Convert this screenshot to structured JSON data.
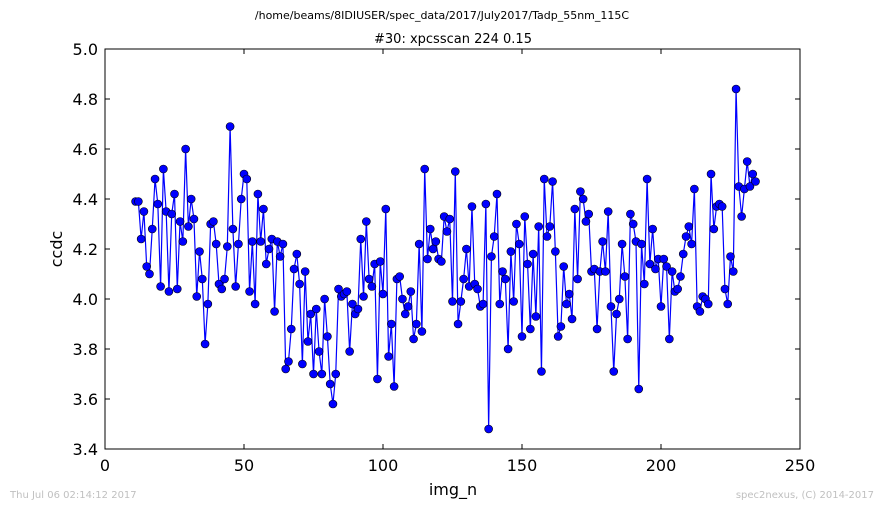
{
  "chart_data": {
    "type": "line",
    "suptitle": "/home/beams/8IDIUSER/spec_data/2017/July2017/Tadp_55nm_115C",
    "title": "#30: xpcsscan 224 0.15",
    "xlabel": "img_n",
    "ylabel": "ccdc",
    "xlim": [
      0,
      250
    ],
    "ylim": [
      3.4,
      5.0
    ],
    "xticks": [
      "0",
      "50",
      "100",
      "150",
      "200",
      "250"
    ],
    "yticks": [
      "3.4",
      "3.6",
      "3.8",
      "4.0",
      "4.2",
      "4.4",
      "4.6",
      "4.8",
      "5.0"
    ],
    "grid": false,
    "color": "#0000ff",
    "marker": "circle",
    "x_start": 11,
    "series": [
      {
        "values": [
          4.39,
          4.39,
          4.24,
          4.35,
          4.13,
          4.1,
          4.28,
          4.48,
          4.38,
          4.05,
          4.52,
          4.35,
          4.03,
          4.34,
          4.42,
          4.04,
          4.31,
          4.23,
          4.6,
          4.29,
          4.4,
          4.32,
          4.01,
          4.19,
          4.08,
          3.82,
          3.98,
          4.3,
          4.31,
          4.22,
          4.06,
          4.04,
          4.08,
          4.21,
          4.69,
          4.28,
          4.05,
          4.22,
          4.4,
          4.5,
          4.48,
          4.03,
          4.23,
          3.98,
          4.42,
          4.23,
          4.36,
          4.14,
          4.2,
          4.24,
          3.95,
          4.23,
          4.17,
          4.22,
          3.72,
          3.75,
          3.88,
          4.12,
          4.18,
          4.06,
          3.74,
          4.11,
          3.83,
          3.94,
          3.7,
          3.96,
          3.79,
          3.7,
          4.0,
          3.85,
          3.66,
          3.58,
          3.7,
          4.04,
          4.01,
          4.02,
          4.03,
          3.79,
          3.98,
          3.94,
          3.96,
          4.24,
          4.01,
          4.31,
          4.08,
          4.05,
          4.14,
          3.68,
          4.15,
          4.02,
          4.36,
          3.77,
          3.9,
          3.65,
          4.08,
          4.09,
          4.0,
          3.94,
          3.97,
          4.03,
          3.84,
          3.9,
          4.22,
          3.87,
          4.52,
          4.16,
          4.28,
          4.2,
          4.23,
          4.16,
          4.15,
          4.33,
          4.27,
          4.32,
          3.99,
          4.51,
          3.9,
          3.99,
          4.08,
          4.2,
          4.05,
          4.37,
          4.06,
          4.04,
          3.97,
          3.98,
          4.38,
          3.48,
          4.17,
          4.25,
          4.42,
          3.98,
          4.11,
          4.08,
          3.8,
          4.19,
          3.99,
          4.3,
          4.22,
          3.85,
          4.33,
          4.14,
          3.88,
          4.18,
          3.93,
          4.29,
          3.71,
          4.48,
          4.25,
          4.29,
          4.47,
          4.19,
          3.85,
          3.89,
          4.13,
          3.98,
          4.02,
          3.92,
          4.36,
          4.08,
          4.43,
          4.4,
          4.31,
          4.34,
          4.11,
          4.12,
          3.88,
          4.11,
          4.23,
          4.11,
          4.35,
          3.97,
          3.71,
          3.94,
          4.0,
          4.22,
          4.09,
          3.84,
          4.34,
          4.3,
          4.23,
          3.64,
          4.22,
          4.06,
          4.48,
          4.14,
          4.28,
          4.12,
          4.16,
          3.97,
          4.16,
          4.13,
          3.84,
          4.11,
          4.03,
          4.04,
          4.09,
          4.18,
          4.25,
          4.29,
          4.22,
          4.44,
          3.97,
          3.95,
          4.01,
          4.0,
          3.98,
          4.5,
          4.28,
          4.37,
          4.38,
          4.37,
          4.04,
          3.98,
          4.17,
          4.11,
          4.84,
          4.45,
          4.33,
          4.44,
          4.55,
          4.45,
          4.5,
          4.47
        ]
      }
    ]
  },
  "footer": {
    "left": "Thu Jul 06 02:14:12 2017",
    "right": "spec2nexus, (C) 2014-2017"
  }
}
